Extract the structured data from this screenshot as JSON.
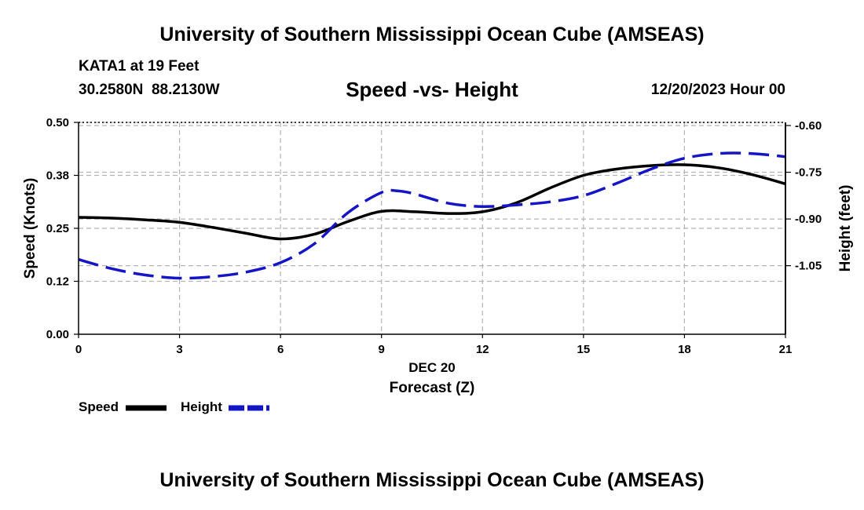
{
  "header": {
    "title": "University of Southern Mississippi Ocean Cube (AMSEAS)",
    "station": "KATA1 at 19 Feet",
    "coordinates": "30.2580N  88.2130W",
    "subtitle": "Speed -vs- Height",
    "datetime": "12/20/2023 Hour 00"
  },
  "footer": {
    "title": "University of Southern Mississippi Ocean Cube (AMSEAS)"
  },
  "legend": {
    "speed_label": "Speed",
    "height_label": "Height"
  },
  "colors": {
    "speed": "#000000",
    "height": "#1515c8",
    "grid": "#b4b4b4"
  },
  "chart_data": {
    "type": "line",
    "title": "Speed -vs- Height",
    "xlabel": "Forecast (Z)",
    "xlabel_date": "DEC 20",
    "ylabel": "Speed (Knots)",
    "y2label": "Height (feet)",
    "xlim": [
      0,
      21
    ],
    "ylim": [
      0,
      0.5
    ],
    "y2lim": [
      -1.27,
      -0.59
    ],
    "x_ticks": [
      0,
      3,
      6,
      9,
      12,
      15,
      18,
      21
    ],
    "x_tick_labels": [
      "0",
      "3",
      "6",
      "9",
      "12",
      "15",
      "18",
      "21"
    ],
    "y_ticks": [
      0,
      0.125,
      0.25,
      0.375,
      0.5
    ],
    "y_tick_labels": [
      "0.00",
      "0.12",
      "0.25",
      "0.38",
      "0.50"
    ],
    "y2_ticks": [
      -1.05,
      -0.9,
      -0.75,
      -0.6
    ],
    "y2_tick_labels": [
      "-1.05",
      "-0.90",
      "-0.75",
      "-0.60"
    ],
    "grid": true,
    "series": [
      {
        "name": "Speed",
        "axis": "left",
        "style": "solid",
        "x": [
          0,
          1,
          2,
          3,
          4,
          5,
          6,
          7,
          8,
          9,
          10,
          11,
          12,
          13,
          14,
          15,
          16,
          17,
          18,
          19,
          20,
          21
        ],
        "values": [
          0.276,
          0.274,
          0.27,
          0.264,
          0.252,
          0.238,
          0.225,
          0.236,
          0.266,
          0.29,
          0.289,
          0.285,
          0.289,
          0.31,
          0.345,
          0.375,
          0.39,
          0.398,
          0.4,
          0.393,
          0.377,
          0.355
        ]
      },
      {
        "name": "Height",
        "axis": "right",
        "style": "dashed",
        "x": [
          0,
          1,
          2,
          3,
          4,
          5,
          6,
          7,
          8,
          9,
          9.5,
          10,
          11,
          12,
          13,
          14,
          15,
          16,
          17,
          18,
          19,
          20,
          21
        ],
        "values": [
          -1.03,
          -1.06,
          -1.08,
          -1.09,
          -1.085,
          -1.07,
          -1.04,
          -0.98,
          -0.88,
          -0.815,
          -0.81,
          -0.82,
          -0.85,
          -0.86,
          -0.855,
          -0.845,
          -0.825,
          -0.785,
          -0.74,
          -0.705,
          -0.69,
          -0.69,
          -0.7
        ]
      }
    ]
  }
}
